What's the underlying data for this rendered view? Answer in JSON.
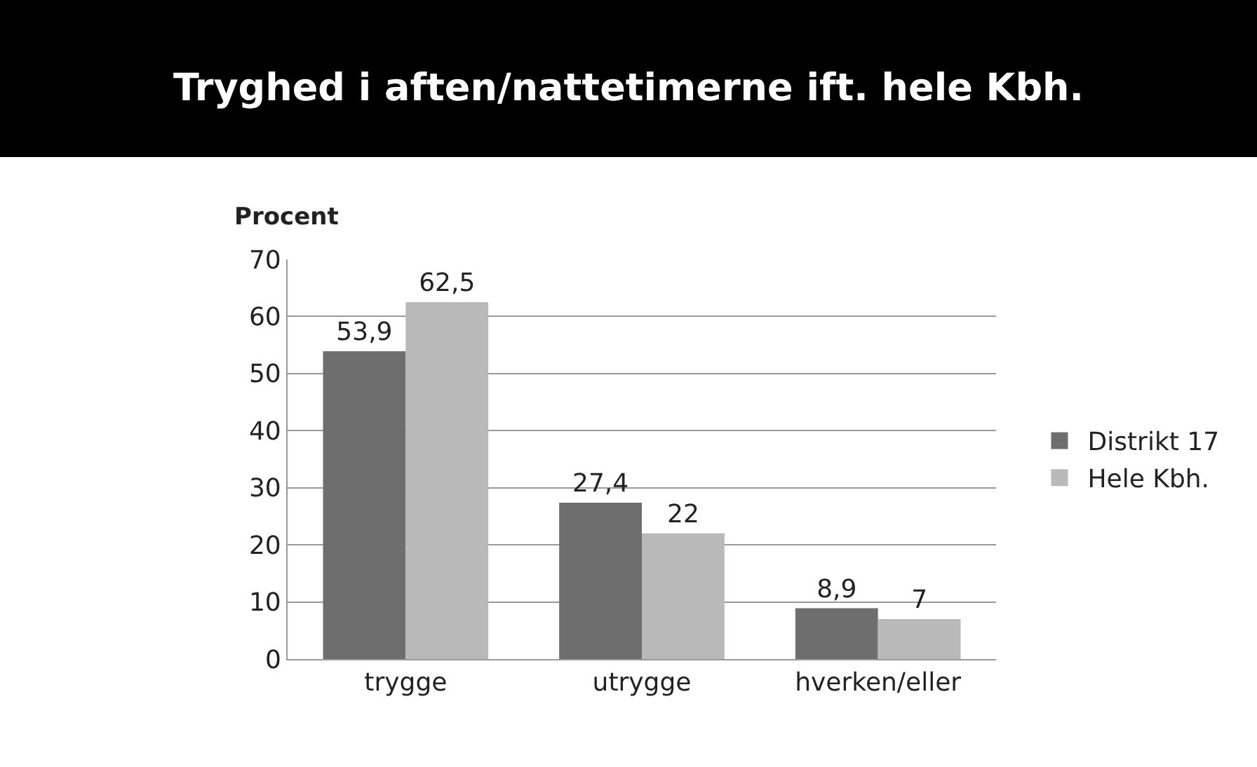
{
  "chart_data": {
    "type": "bar",
    "title": "Tryghed i aften/nattetimerne ift. hele Kbh.",
    "ylabel": "Procent",
    "categories": [
      "trygge",
      "utrygge",
      "hverken/eller"
    ],
    "series": [
      {
        "name": "Distrikt 17",
        "color": "#6e6e6e",
        "values": [
          53.9,
          27.4,
          8.9
        ],
        "value_labels": [
          "53,9",
          "27,4",
          "8,9"
        ]
      },
      {
        "name": "Hele Kbh.",
        "color": "#b9b9b9",
        "values": [
          62.5,
          22,
          7
        ],
        "value_labels": [
          "62,5",
          "22",
          "7"
        ]
      }
    ],
    "ylim": [
      0,
      70
    ],
    "yticks": [
      0,
      10,
      20,
      30,
      40,
      50,
      60,
      70
    ],
    "grid": "y",
    "legend": "right"
  }
}
